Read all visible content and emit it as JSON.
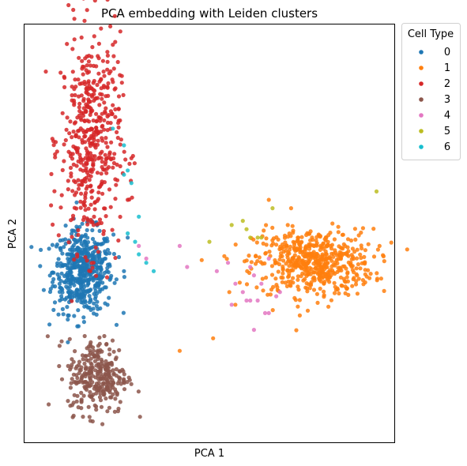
{
  "chart_data": {
    "type": "scatter",
    "title": "PCA embedding with Leiden clusters",
    "xlabel": "PCA 1",
    "ylabel": "PCA 2",
    "xlim": [
      0,
      100
    ],
    "ylim": [
      0,
      100
    ],
    "ticks_visible": false,
    "grid": false,
    "legend": {
      "title": "Cell Type",
      "placement": "outside-top-right"
    },
    "series": [
      {
        "name": "0",
        "color": "#1f77b4",
        "n": 520,
        "center": [
          16,
          41
        ],
        "spread": [
          4,
          5
        ],
        "extra": [
          [
            10,
            46
          ],
          [
            22,
            44
          ],
          [
            28,
            49
          ],
          [
            12,
            36
          ],
          [
            27,
            41
          ]
        ]
      },
      {
        "name": "1",
        "color": "#ff7f0e",
        "n": 560,
        "center": [
          78,
          43
        ],
        "spread": [
          8,
          4
        ],
        "extra": [
          [
            42,
            22
          ],
          [
            51,
            25
          ],
          [
            66,
            58
          ],
          [
            72,
            56
          ],
          [
            92,
            46
          ],
          [
            57,
            33
          ]
        ]
      },
      {
        "name": "2",
        "color": "#d62728",
        "n": 480,
        "center": [
          18,
          72
        ],
        "spread": [
          4,
          13
        ],
        "extra": [
          [
            19,
            97
          ],
          [
            24,
            95
          ],
          [
            13,
            85
          ],
          [
            8,
            72
          ],
          [
            26,
            66
          ],
          [
            28,
            58
          ]
        ]
      },
      {
        "name": "3",
        "color": "#8c564b",
        "n": 300,
        "center": [
          20,
          16
        ],
        "spread": [
          4,
          4.5
        ]
      },
      {
        "name": "4",
        "color": "#e377c2",
        "points": [
          [
            31,
            47
          ],
          [
            33,
            44
          ],
          [
            42,
            47
          ],
          [
            44,
            42
          ],
          [
            52,
            41
          ],
          [
            55,
            43
          ],
          [
            57,
            38
          ],
          [
            59,
            36
          ],
          [
            61,
            42
          ],
          [
            63,
            34
          ],
          [
            64,
            38
          ],
          [
            66,
            31
          ],
          [
            68,
            35
          ],
          [
            69,
            36
          ],
          [
            62,
            40
          ],
          [
            56,
            33
          ],
          [
            65,
            31
          ],
          [
            61,
            34
          ],
          [
            60,
            34
          ],
          [
            66,
            44
          ],
          [
            62,
            27
          ]
        ]
      },
      {
        "name": "5",
        "color": "#bcbd22",
        "points": [
          [
            95,
            60
          ],
          [
            67,
            56
          ],
          [
            56,
            52
          ],
          [
            59,
            53
          ],
          [
            60,
            51
          ],
          [
            50,
            48
          ],
          [
            61,
            49
          ],
          [
            63,
            49
          ],
          [
            64,
            49
          ]
        ]
      },
      {
        "name": "6",
        "color": "#17becf",
        "points": [
          [
            24,
            75
          ],
          [
            27,
            71
          ],
          [
            28,
            65
          ],
          [
            27,
            64
          ],
          [
            29,
            62
          ],
          [
            31,
            54
          ],
          [
            30,
            48
          ],
          [
            31,
            45
          ],
          [
            33,
            43
          ],
          [
            35,
            41
          ],
          [
            28,
            50
          ]
        ]
      }
    ]
  }
}
